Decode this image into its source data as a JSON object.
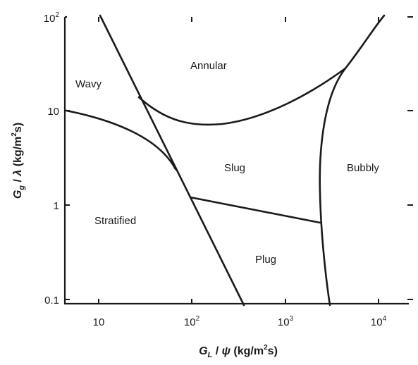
{
  "map": {
    "x_axis": {
      "title_main": "G",
      "title_sub": "L",
      "title_rest": " / ",
      "title_symbol": "ψ",
      "title_unit_a": "  (kg/m",
      "title_unit_sup": "2",
      "title_unit_b": "s)",
      "ticks": [
        {
          "label": "10",
          "sup": ""
        },
        {
          "label": "10",
          "sup": "2"
        },
        {
          "label": "10",
          "sup": "3"
        },
        {
          "label": "10",
          "sup": "4"
        }
      ]
    },
    "y_axis": {
      "title_main": "G",
      "title_sub": "g",
      "title_rest": " / ",
      "title_symbol": "λ",
      "title_unit_a": "  (kg/m",
      "title_unit_sup": "2",
      "title_unit_b": "s)",
      "ticks": [
        {
          "label": "10",
          "sup": "2"
        },
        {
          "label": "10",
          "sup": ""
        },
        {
          "label": "1",
          "sup": ""
        },
        {
          "label": "0.1",
          "sup": ""
        }
      ]
    },
    "regions": {
      "annular": "Annular",
      "wavy": "Wavy",
      "slug": "Slug",
      "bubbly": "Bubbly",
      "stratified": "Stratified",
      "plug": "Plug"
    }
  }
}
